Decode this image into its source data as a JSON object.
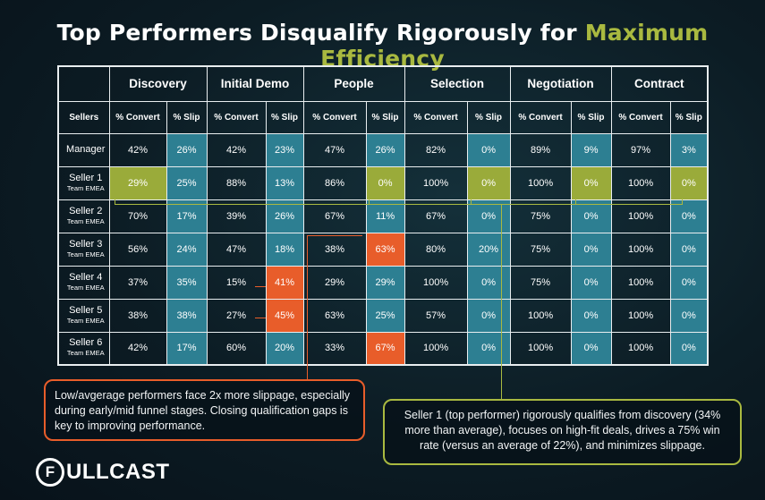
{
  "title": {
    "main": "Top Performers Disqualify Rigorously for ",
    "accent": "Maximum Efficiency",
    "accent_color": "#a9b940"
  },
  "chart_data": {
    "type": "table",
    "stages": [
      "Discovery",
      "Initial Demo",
      "People",
      "Selection",
      "Negotiation",
      "Contract"
    ],
    "sellers_header": "Sellers",
    "metric_headers": [
      "% Convert",
      "% Slip"
    ],
    "rows": [
      {
        "name": "Manager",
        "team": "",
        "values": [
          "42%",
          "26%",
          "42%",
          "23%",
          "47%",
          "26%",
          "82%",
          "0%",
          "89%",
          "9%",
          "97%",
          "3%"
        ]
      },
      {
        "name": "Seller 1",
        "team": "Team EMEA",
        "values": [
          "29%",
          "25%",
          "88%",
          "13%",
          "86%",
          "0%",
          "100%",
          "0%",
          "100%",
          "0%",
          "100%",
          "0%"
        ]
      },
      {
        "name": "Seller 2",
        "team": "Team EMEA",
        "values": [
          "70%",
          "17%",
          "39%",
          "26%",
          "67%",
          "11%",
          "67%",
          "0%",
          "75%",
          "0%",
          "100%",
          "0%"
        ]
      },
      {
        "name": "Seller 3",
        "team": "Team EMEA",
        "values": [
          "56%",
          "24%",
          "47%",
          "18%",
          "38%",
          "63%",
          "80%",
          "20%",
          "75%",
          "0%",
          "100%",
          "0%"
        ]
      },
      {
        "name": "Seller 4",
        "team": "Team EMEA",
        "values": [
          "37%",
          "35%",
          "15%",
          "41%",
          "29%",
          "29%",
          "100%",
          "0%",
          "75%",
          "0%",
          "100%",
          "0%"
        ]
      },
      {
        "name": "Seller 5",
        "team": "Team EMEA",
        "values": [
          "38%",
          "38%",
          "27%",
          "45%",
          "63%",
          "25%",
          "57%",
          "0%",
          "100%",
          "0%",
          "100%",
          "0%"
        ]
      },
      {
        "name": "Seller 6",
        "team": "Team EMEA",
        "values": [
          "42%",
          "17%",
          "60%",
          "20%",
          "33%",
          "67%",
          "100%",
          "0%",
          "100%",
          "0%",
          "100%",
          "0%"
        ]
      }
    ],
    "highlights": {
      "green": [
        [
          1,
          0
        ],
        [
          1,
          5
        ],
        [
          1,
          7
        ],
        [
          1,
          9
        ],
        [
          1,
          11
        ]
      ],
      "orange": [
        [
          3,
          5
        ],
        [
          4,
          3
        ],
        [
          5,
          3
        ],
        [
          6,
          5
        ]
      ]
    },
    "colors": {
      "slip": "#2d7f92",
      "green": "#9aab3a",
      "orange": "#e85d2a"
    }
  },
  "callouts": {
    "left": "Low/avgerage performers face 2x more slippage, especially during early/mid funnel stages. Closing qualification gaps is key to improving performance.",
    "right": "Seller 1 (top performer) rigorously qualifies from discovery (34% more than average), focuses on high-fit deals, drives a 75% win rate (versus an average of 22%), and minimizes slippage."
  },
  "logo": {
    "mark": "F",
    "text": "ULLCAST"
  }
}
